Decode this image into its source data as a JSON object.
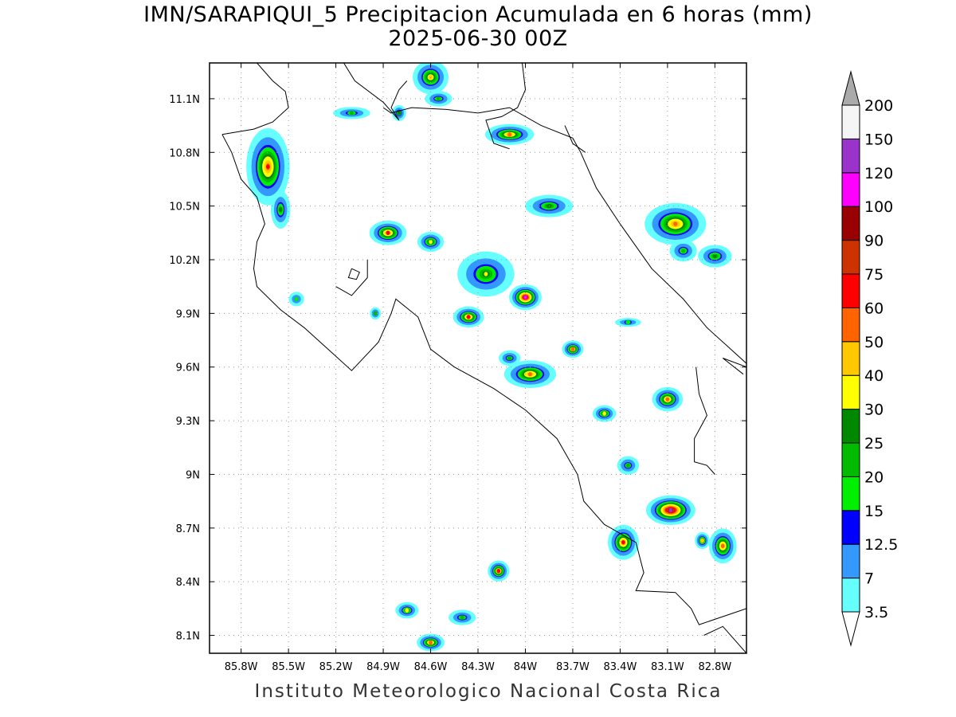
{
  "title_line1": "IMN/SARAPIQUI_5 Precipitacion Acumulada en 6 horas (mm)",
  "title_line2": "2025-06-30 00Z",
  "footer": "Instituto Meteorologico Nacional Costa Rica",
  "map": {
    "lon_range": [
      -86.0,
      -82.6
    ],
    "lat_range": [
      8.0,
      11.3
    ],
    "lon_ticks": [
      {
        "value": -85.8,
        "label": "85.8W"
      },
      {
        "value": -85.5,
        "label": "85.5W"
      },
      {
        "value": -85.2,
        "label": "85.2W"
      },
      {
        "value": -84.9,
        "label": "84.9W"
      },
      {
        "value": -84.6,
        "label": "84.6W"
      },
      {
        "value": -84.3,
        "label": "84.3W"
      },
      {
        "value": -84.0,
        "label": "84W"
      },
      {
        "value": -83.7,
        "label": "83.7W"
      },
      {
        "value": -83.4,
        "label": "83.4W"
      },
      {
        "value": -83.1,
        "label": "83.1W"
      },
      {
        "value": -82.8,
        "label": "82.8W"
      }
    ],
    "lat_ticks": [
      {
        "value": 11.1,
        "label": "11.1N"
      },
      {
        "value": 10.8,
        "label": "10.8N"
      },
      {
        "value": 10.5,
        "label": "10.5N"
      },
      {
        "value": 10.2,
        "label": "10.2N"
      },
      {
        "value": 9.9,
        "label": "9.9N"
      },
      {
        "value": 9.6,
        "label": "9.6N"
      },
      {
        "value": 9.3,
        "label": "9.3N"
      },
      {
        "value": 9.0,
        "label": "9N"
      },
      {
        "value": 8.7,
        "label": "8.7N"
      },
      {
        "value": 8.4,
        "label": "8.4N"
      },
      {
        "value": 8.1,
        "label": "8.1N"
      }
    ],
    "grid_lines": true
  },
  "colorbar": {
    "levels": [
      "3.5",
      "7",
      "12.5",
      "15",
      "20",
      "25",
      "30",
      "40",
      "50",
      "60",
      "75",
      "90",
      "100",
      "120",
      "150",
      "200"
    ],
    "colors": [
      "#66ffff",
      "#3399ff",
      "#0000ff",
      "#00ee00",
      "#00bb00",
      "#008800",
      "#ffff00",
      "#ffc800",
      "#ff6400",
      "#ff0000",
      "#cc3300",
      "#990000",
      "#ff00ff",
      "#9933cc",
      "#f5f5f5"
    ],
    "under_color": "#ffffff",
    "over_color": "#aaaaaa"
  },
  "rain_cells": [
    {
      "lon": -85.63,
      "lat": 10.72,
      "rx": 0.14,
      "ry": 0.22,
      "peak": 62
    },
    {
      "lon": -85.55,
      "lat": 10.48,
      "rx": 0.07,
      "ry": 0.12,
      "peak": 28
    },
    {
      "lon": -84.87,
      "lat": 10.35,
      "rx": 0.12,
      "ry": 0.07,
      "peak": 62
    },
    {
      "lon": -84.6,
      "lat": 10.3,
      "rx": 0.09,
      "ry": 0.06,
      "peak": 40
    },
    {
      "lon": -84.25,
      "lat": 10.12,
      "rx": 0.2,
      "ry": 0.14,
      "peak": 32
    },
    {
      "lon": -84.0,
      "lat": 9.99,
      "rx": 0.1,
      "ry": 0.07,
      "peak": 110
    },
    {
      "lon": -84.36,
      "lat": 9.88,
      "rx": 0.1,
      "ry": 0.06,
      "peak": 62
    },
    {
      "lon": -83.97,
      "lat": 9.56,
      "rx": 0.17,
      "ry": 0.08,
      "peak": 55
    },
    {
      "lon": -83.7,
      "lat": 9.7,
      "rx": 0.07,
      "ry": 0.05,
      "peak": 58
    },
    {
      "lon": -83.85,
      "lat": 10.5,
      "rx": 0.17,
      "ry": 0.07,
      "peak": 30
    },
    {
      "lon": -83.05,
      "lat": 10.4,
      "rx": 0.2,
      "ry": 0.12,
      "peak": 58
    },
    {
      "lon": -82.8,
      "lat": 10.22,
      "rx": 0.12,
      "ry": 0.07,
      "peak": 30
    },
    {
      "lon": -83.0,
      "lat": 10.25,
      "rx": 0.1,
      "ry": 0.07,
      "peak": 25
    },
    {
      "lon": -84.1,
      "lat": 10.9,
      "rx": 0.16,
      "ry": 0.06,
      "peak": 55
    },
    {
      "lon": -84.6,
      "lat": 11.22,
      "rx": 0.12,
      "ry": 0.1,
      "peak": 45
    },
    {
      "lon": -84.8,
      "lat": 11.02,
      "rx": 0.05,
      "ry": 0.05,
      "peak": 30
    },
    {
      "lon": -84.55,
      "lat": 11.1,
      "rx": 0.1,
      "ry": 0.05,
      "peak": 25
    },
    {
      "lon": -85.1,
      "lat": 11.02,
      "rx": 0.14,
      "ry": 0.04,
      "peak": 22
    },
    {
      "lon": -83.1,
      "lat": 9.42,
      "rx": 0.1,
      "ry": 0.07,
      "peak": 58
    },
    {
      "lon": -83.5,
      "lat": 9.34,
      "rx": 0.08,
      "ry": 0.05,
      "peak": 40
    },
    {
      "lon": -83.35,
      "lat": 9.05,
      "rx": 0.08,
      "ry": 0.06,
      "peak": 25
    },
    {
      "lon": -83.08,
      "lat": 8.8,
      "rx": 0.15,
      "ry": 0.08,
      "peak": 125
    },
    {
      "lon": -83.38,
      "lat": 8.62,
      "rx": 0.1,
      "ry": 0.1,
      "peak": 62
    },
    {
      "lon": -82.75,
      "lat": 8.6,
      "rx": 0.09,
      "ry": 0.1,
      "peak": 60
    },
    {
      "lon": -82.88,
      "lat": 8.63,
      "rx": 0.05,
      "ry": 0.05,
      "peak": 45
    },
    {
      "lon": -84.17,
      "lat": 8.46,
      "rx": 0.07,
      "ry": 0.06,
      "peak": 62
    },
    {
      "lon": -84.6,
      "lat": 8.06,
      "rx": 0.09,
      "ry": 0.05,
      "peak": 60
    },
    {
      "lon": -84.75,
      "lat": 8.24,
      "rx": 0.08,
      "ry": 0.05,
      "peak": 35
    },
    {
      "lon": -84.4,
      "lat": 8.2,
      "rx": 0.1,
      "ry": 0.05,
      "peak": 25
    },
    {
      "lon": -83.35,
      "lat": 9.85,
      "rx": 0.1,
      "ry": 0.03,
      "peak": 20
    },
    {
      "lon": -84.95,
      "lat": 9.9,
      "rx": 0.04,
      "ry": 0.04,
      "peak": 25
    },
    {
      "lon": -85.45,
      "lat": 9.98,
      "rx": 0.06,
      "ry": 0.05,
      "peak": 18
    },
    {
      "lon": -84.1,
      "lat": 9.65,
      "rx": 0.08,
      "ry": 0.05,
      "peak": 25
    }
  ],
  "coastlines": [
    [
      [
        -85.92,
        10.9
      ],
      [
        -85.86,
        10.8
      ],
      [
        -85.8,
        10.65
      ],
      [
        -85.7,
        10.55
      ],
      [
        -85.65,
        10.4
      ],
      [
        -85.7,
        10.3
      ],
      [
        -85.72,
        10.15
      ],
      [
        -85.7,
        10.05
      ],
      [
        -85.55,
        9.92
      ],
      [
        -85.4,
        9.82
      ],
      [
        -85.25,
        9.7
      ],
      [
        -85.1,
        9.58
      ],
      [
        -84.93,
        9.74
      ],
      [
        -84.85,
        9.9
      ],
      [
        -84.82,
        9.98
      ],
      [
        -84.68,
        9.88
      ],
      [
        -84.6,
        9.7
      ],
      [
        -84.45,
        9.6
      ],
      [
        -84.2,
        9.48
      ],
      [
        -84.0,
        9.36
      ],
      [
        -83.8,
        9.2
      ],
      [
        -83.67,
        9.0
      ],
      [
        -83.63,
        8.85
      ],
      [
        -83.5,
        8.72
      ],
      [
        -83.3,
        8.62
      ],
      [
        -83.25,
        8.45
      ],
      [
        -83.3,
        8.35
      ],
      [
        -83.05,
        8.34
      ],
      [
        -82.95,
        8.25
      ],
      [
        -82.9,
        8.16
      ],
      [
        -82.7,
        8.22
      ],
      [
        -82.6,
        8.25
      ]
    ],
    [
      [
        -85.0,
        10.2
      ],
      [
        -85.0,
        10.1
      ],
      [
        -85.1,
        10.0
      ],
      [
        -85.2,
        10.05
      ]
    ],
    [
      [
        -85.1,
        10.15
      ],
      [
        -85.05,
        10.13
      ],
      [
        -85.07,
        10.09
      ],
      [
        -85.12,
        10.1
      ],
      [
        -85.1,
        10.15
      ]
    ],
    [
      [
        -84.9,
        11.05
      ],
      [
        -84.85,
        11.02
      ],
      [
        -84.72,
        11.05
      ],
      [
        -84.5,
        11.04
      ],
      [
        -84.3,
        11.02
      ],
      [
        -84.1,
        11.05
      ],
      [
        -83.9,
        10.95
      ],
      [
        -83.7,
        10.88
      ],
      [
        -83.65,
        10.8
      ],
      [
        -83.55,
        10.6
      ],
      [
        -83.4,
        10.4
      ],
      [
        -83.2,
        10.15
      ],
      [
        -83.0,
        9.98
      ],
      [
        -82.85,
        9.82
      ],
      [
        -82.7,
        9.7
      ],
      [
        -82.6,
        9.62
      ]
    ],
    [
      [
        -85.7,
        11.3
      ],
      [
        -85.6,
        11.2
      ],
      [
        -85.52,
        11.14
      ],
      [
        -85.5,
        11.05
      ],
      [
        -85.6,
        10.97
      ],
      [
        -85.72,
        10.93
      ],
      [
        -85.92,
        10.9
      ]
    ],
    [
      [
        -85.15,
        11.3
      ],
      [
        -85.08,
        11.2
      ],
      [
        -84.9,
        11.08
      ],
      [
        -84.8,
        10.98
      ],
      [
        -84.85,
        11.05
      ],
      [
        -84.8,
        11.15
      ],
      [
        -84.75,
        11.2
      ]
    ],
    [
      [
        -84.02,
        11.3
      ],
      [
        -84.0,
        11.15
      ],
      [
        -84.05,
        11.05
      ],
      [
        -84.15,
        11.0
      ],
      [
        -84.25,
        10.98
      ],
      [
        -84.2,
        10.85
      ],
      [
        -84.1,
        10.82
      ]
    ],
    [
      [
        -83.75,
        10.95
      ],
      [
        -83.7,
        10.85
      ],
      [
        -83.62,
        10.8
      ]
    ],
    [
      [
        -82.92,
        9.6
      ],
      [
        -82.9,
        9.45
      ],
      [
        -82.85,
        9.33
      ],
      [
        -82.93,
        9.2
      ],
      [
        -82.93,
        9.07
      ],
      [
        -82.85,
        9.05
      ],
      [
        -82.8,
        9.0
      ]
    ],
    [
      [
        -82.6,
        8.0
      ],
      [
        -82.75,
        8.15
      ],
      [
        -82.87,
        8.1
      ]
    ],
    [
      [
        -82.6,
        9.6
      ],
      [
        -82.75,
        9.65
      ],
      [
        -82.62,
        9.56
      ]
    ]
  ]
}
